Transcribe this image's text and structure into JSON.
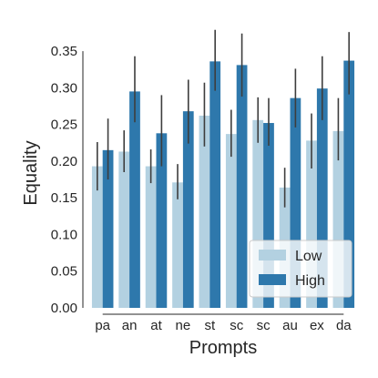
{
  "chart_data": {
    "type": "bar",
    "title": "",
    "xlabel": "Prompts",
    "ylabel": "Equality",
    "categories": [
      "pa",
      "an",
      "at",
      "ne",
      "st",
      "sc",
      "sc",
      "au",
      "ex",
      "da"
    ],
    "ylim": [
      0,
      0.37
    ],
    "yticks": [
      "0.00",
      "0.05",
      "0.10",
      "0.15",
      "0.20",
      "0.25",
      "0.30",
      "0.35"
    ],
    "grid": false,
    "legend_position": "bottom-right",
    "series": [
      {
        "name": "Low",
        "color": "#b3d1e1",
        "values": [
          0.193,
          0.213,
          0.193,
          0.171,
          0.262,
          0.237,
          0.256,
          0.164,
          0.228,
          0.241
        ],
        "ci_low": [
          0.16,
          0.185,
          0.17,
          0.148,
          0.22,
          0.206,
          0.225,
          0.137,
          0.19,
          0.201
        ],
        "ci_high": [
          0.226,
          0.242,
          0.216,
          0.196,
          0.307,
          0.27,
          0.287,
          0.191,
          0.265,
          0.286
        ]
      },
      {
        "name": "High",
        "color": "#2e78ac",
        "values": [
          0.215,
          0.295,
          0.238,
          0.268,
          0.336,
          0.331,
          0.252,
          0.286,
          0.299,
          0.337
        ],
        "ci_low": [
          0.175,
          0.253,
          0.193,
          0.224,
          0.296,
          0.288,
          0.221,
          0.246,
          0.256,
          0.291
        ],
        "ci_high": [
          0.258,
          0.343,
          0.29,
          0.311,
          0.379,
          0.374,
          0.286,
          0.326,
          0.343,
          0.376
        ]
      }
    ]
  }
}
